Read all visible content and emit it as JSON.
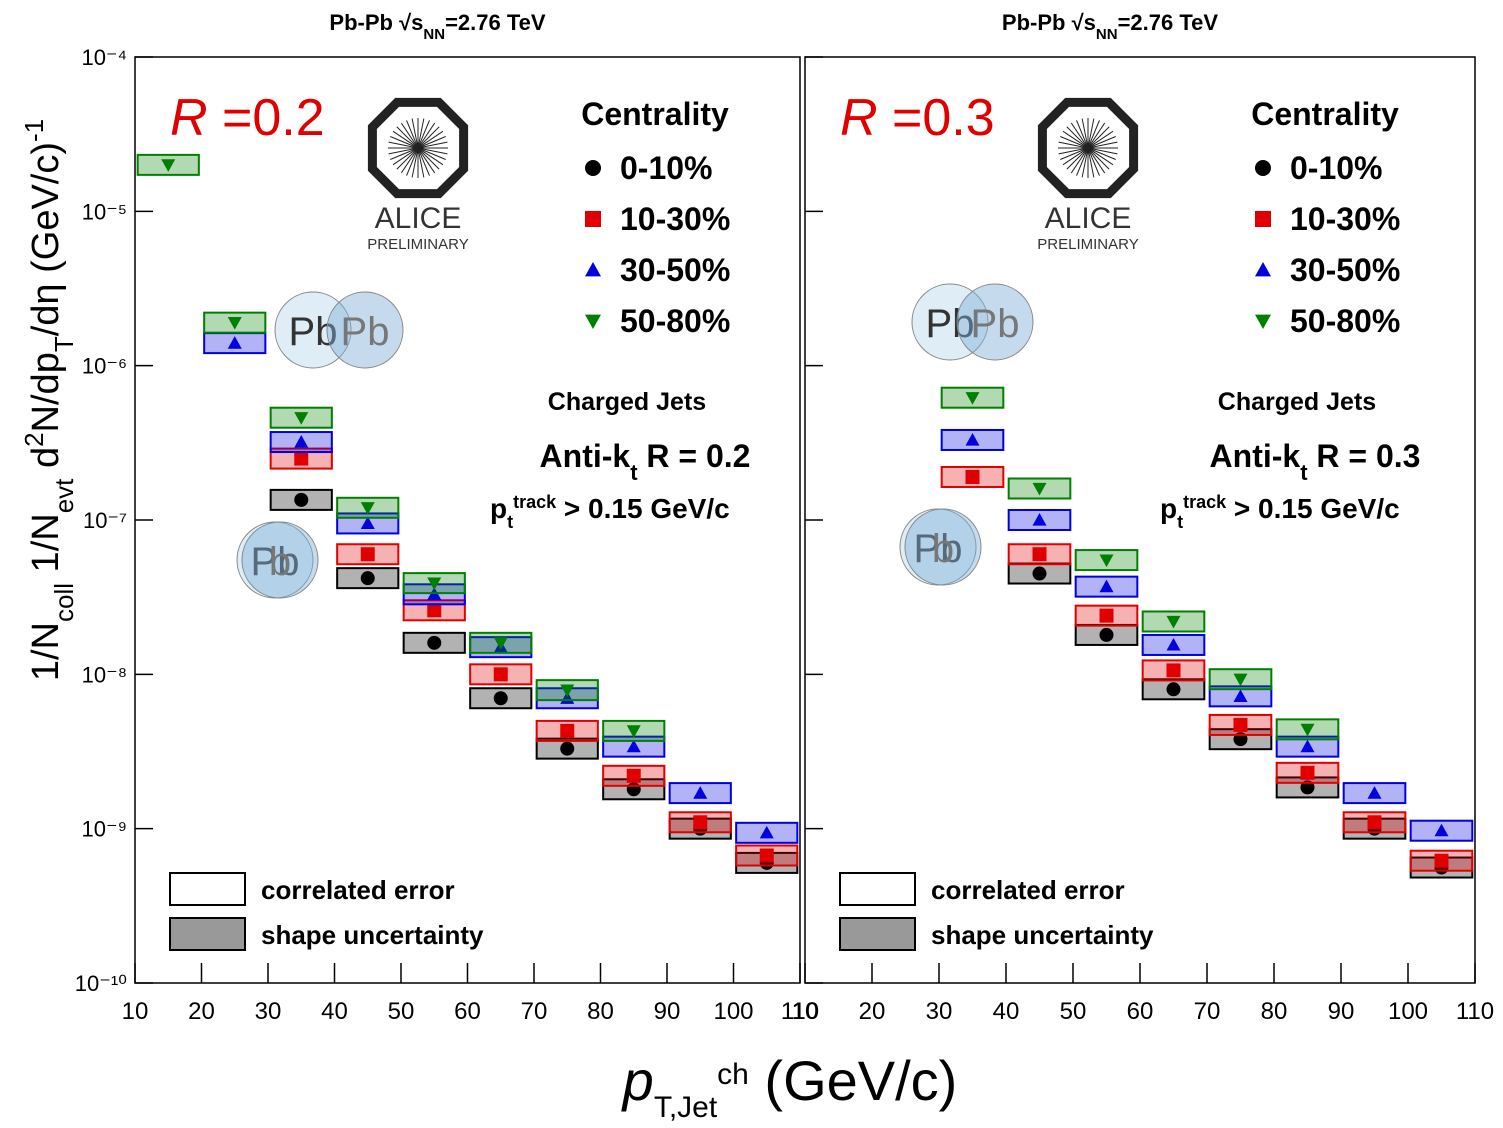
{
  "y_label": [
    "1/N",
    "coll",
    " 1/N",
    "evt",
    " d",
    "2",
    "N/dp",
    "T",
    "/dη (GeV/c)",
    "-1"
  ],
  "x_label": [
    "p",
    "T,Jet",
    "ch",
    " (GeV/c)"
  ],
  "chart_data": [
    {
      "type": "scatter",
      "title": [
        "Pb-Pb √s",
        "NN",
        "=2.76 TeV"
      ],
      "radius_label": [
        "R",
        " =0.2"
      ],
      "logo": [
        "ALICE",
        "PRELIMINARY"
      ],
      "nuclei": [
        "Pb",
        "Pb",
        "Pb",
        "b"
      ],
      "legend_title": "Centrality",
      "annotation": "Charged Jets",
      "algorithm": [
        "Anti-k",
        "t",
        " R = 0.2"
      ],
      "cut": [
        "p",
        "t",
        "track",
        " > 0.15 GeV/c"
      ],
      "error_legend": [
        "correlated error",
        "shape uncertainty"
      ],
      "x": [
        15,
        25,
        35,
        45,
        55,
        65,
        75,
        85,
        95,
        105
      ],
      "series": [
        {
          "name": "0-10%",
          "color": "#000000",
          "marker": "circle",
          "values": [
            null,
            null,
            1.35e-07,
            4.2e-08,
            1.6e-08,
            7e-09,
            3.3e-09,
            1.8e-09,
            1e-09,
            6e-10
          ]
        },
        {
          "name": "10-30%",
          "color": "#e00000",
          "marker": "square",
          "values": [
            null,
            null,
            2.5e-07,
            6e-08,
            2.6e-08,
            1e-08,
            4.3e-09,
            2.2e-09,
            1.1e-09,
            6.7e-10
          ]
        },
        {
          "name": "30-50%",
          "color": "#0000e0",
          "marker": "triangle",
          "values": [
            null,
            1.4e-06,
            3.2e-07,
            9.5e-08,
            3.3e-08,
            1.5e-08,
            7e-09,
            3.4e-09,
            1.7e-09,
            9.4e-10
          ]
        },
        {
          "name": "50-80%",
          "color": "#008000",
          "marker": "triangle-down",
          "values": [
            2e-05,
            1.9e-06,
            4.6e-07,
            1.2e-07,
            3.9e-08,
            1.6e-08,
            7.9e-09,
            4.3e-09,
            null,
            null
          ]
        }
      ],
      "xlim": [
        10,
        110
      ],
      "xticks": [
        10,
        20,
        30,
        40,
        50,
        60,
        70,
        80,
        90,
        100,
        110
      ],
      "ylim": [
        1e-10,
        0.0001
      ],
      "log_y": true,
      "yticks": [
        {
          "value": 1e-10,
          "label": "10⁻¹⁰"
        },
        {
          "value": 1e-09,
          "label": "10⁻⁹"
        },
        {
          "value": 1e-08,
          "label": "10⁻⁸"
        },
        {
          "value": 1e-07,
          "label": "10⁻⁷"
        },
        {
          "value": 1e-06,
          "label": "10⁻⁶"
        },
        {
          "value": 1e-05,
          "label": "10⁻⁵"
        },
        {
          "value": 0.0001,
          "label": "10⁻⁴"
        }
      ]
    },
    {
      "type": "scatter",
      "title": [
        "Pb-Pb √s",
        "NN",
        "=2.76 TeV"
      ],
      "radius_label": [
        "R",
        " =0.3"
      ],
      "logo": [
        "ALICE",
        "PRELIMINARY"
      ],
      "nuclei": [
        "Pb",
        "Pb",
        "Pb",
        "b"
      ],
      "legend_title": "Centrality",
      "annotation": "Charged Jets",
      "algorithm": [
        "Anti-k",
        "t",
        " R = 0.3"
      ],
      "cut": [
        "p",
        "t",
        "track",
        " > 0.15 GeV/c"
      ],
      "error_legend": [
        "correlated error",
        "shape uncertainty"
      ],
      "x": [
        15,
        25,
        35,
        45,
        55,
        65,
        75,
        85,
        95,
        105
      ],
      "series": [
        {
          "name": "0-10%",
          "color": "#000000",
          "marker": "circle",
          "values": [
            null,
            null,
            null,
            4.5e-08,
            1.8e-08,
            8e-09,
            3.8e-09,
            1.85e-09,
            1e-09,
            5.6e-10
          ]
        },
        {
          "name": "10-30%",
          "color": "#e00000",
          "marker": "square",
          "values": [
            null,
            null,
            1.9e-07,
            6e-08,
            2.4e-08,
            1.06e-08,
            4.7e-09,
            2.3e-09,
            1.1e-09,
            6.2e-10
          ]
        },
        {
          "name": "30-50%",
          "color": "#0000e0",
          "marker": "triangle",
          "values": [
            null,
            null,
            3.3e-07,
            1e-07,
            3.7e-08,
            1.55e-08,
            7.2e-09,
            3.4e-09,
            1.7e-09,
            9.7e-10
          ]
        },
        {
          "name": "50-80%",
          "color": "#008000",
          "marker": "triangle-down",
          "values": [
            null,
            null,
            6.2e-07,
            1.6e-07,
            5.5e-08,
            2.2e-08,
            9.3e-09,
            4.4e-09,
            null,
            null
          ]
        }
      ],
      "xlim": [
        10,
        110
      ],
      "xticks": [
        10,
        20,
        30,
        40,
        50,
        60,
        70,
        80,
        90,
        100,
        110
      ],
      "ylim": [
        1e-10,
        0.0001
      ],
      "log_y": true,
      "yticks": [
        1e-10,
        1e-09,
        1e-08,
        1e-07,
        1e-06,
        1e-05,
        0.0001
      ]
    }
  ]
}
